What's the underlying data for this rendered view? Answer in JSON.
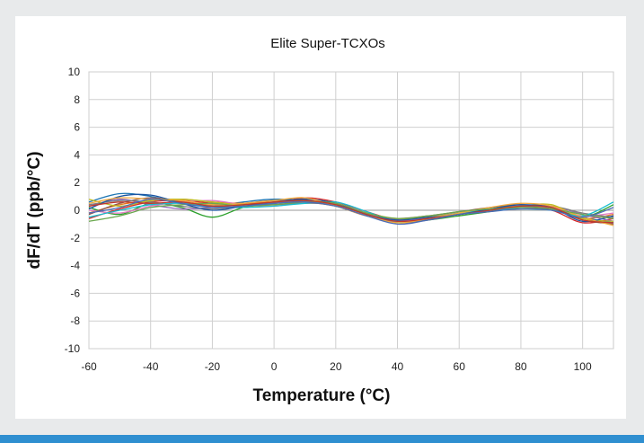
{
  "chart_data": {
    "type": "line",
    "title": "Elite Super-TCXOs",
    "xlabel": "Temperature (°C)",
    "ylabel": "dF/dT (ppb/°C)",
    "xlim": [
      -60,
      110
    ],
    "ylim": [
      -10,
      10
    ],
    "xticks": [
      -60,
      -40,
      -20,
      0,
      20,
      40,
      60,
      80,
      100
    ],
    "yticks": [
      -10,
      -8,
      -6,
      -4,
      -2,
      0,
      2,
      4,
      6,
      8,
      10
    ],
    "grid": true,
    "legend": "none",
    "x": [
      -60,
      -50,
      -40,
      -30,
      -20,
      -10,
      0,
      10,
      20,
      30,
      40,
      50,
      60,
      70,
      80,
      90,
      100,
      110
    ],
    "series": [
      {
        "color": "#1f77b4",
        "values": [
          0.6,
          1.2,
          1.0,
          0.5,
          0.3,
          0.6,
          0.8,
          0.7,
          0.3,
          -0.4,
          -0.8,
          -0.6,
          -0.3,
          0.0,
          0.3,
          0.2,
          -0.5,
          -0.9
        ]
      },
      {
        "color": "#e8731a",
        "values": [
          -0.2,
          0.4,
          0.7,
          0.8,
          0.6,
          0.5,
          0.6,
          0.8,
          0.5,
          -0.2,
          -0.7,
          -0.5,
          -0.2,
          0.1,
          0.3,
          0.1,
          -0.6,
          -0.3
        ]
      },
      {
        "color": "#2ca02c",
        "values": [
          0.2,
          -0.3,
          0.5,
          0.2,
          -0.5,
          0.2,
          0.5,
          0.6,
          0.4,
          -0.3,
          -0.9,
          -0.7,
          -0.4,
          -0.1,
          0.2,
          0.2,
          -0.5,
          0.4
        ]
      },
      {
        "color": "#d62728",
        "values": [
          -0.6,
          0.1,
          0.6,
          0.7,
          0.5,
          0.3,
          0.5,
          0.9,
          0.6,
          -0.1,
          -0.7,
          -0.6,
          -0.3,
          0.0,
          0.2,
          0.0,
          -0.9,
          -0.6
        ]
      },
      {
        "color": "#9467bd",
        "values": [
          0.3,
          0.8,
          0.4,
          0.1,
          0.2,
          0.4,
          0.5,
          0.7,
          0.4,
          -0.3,
          -0.8,
          -0.5,
          -0.2,
          0.0,
          0.3,
          0.3,
          -0.3,
          -0.8
        ]
      },
      {
        "color": "#8c564b",
        "values": [
          -0.3,
          0.5,
          0.9,
          0.6,
          0.4,
          0.5,
          0.7,
          0.6,
          0.3,
          -0.4,
          -0.6,
          -0.4,
          -0.1,
          0.2,
          0.4,
          0.1,
          -0.7,
          -1.0
        ]
      },
      {
        "color": "#e377c2",
        "values": [
          0.0,
          -0.2,
          0.3,
          0.6,
          0.7,
          0.4,
          0.3,
          0.6,
          0.5,
          -0.2,
          -0.7,
          -0.5,
          -0.3,
          0.1,
          0.3,
          0.2,
          -0.4,
          -0.2
        ]
      },
      {
        "color": "#7f7f7f",
        "values": [
          0.4,
          0.7,
          0.6,
          0.3,
          0.1,
          0.3,
          0.4,
          0.5,
          0.4,
          -0.3,
          -0.9,
          -0.7,
          -0.3,
          0.0,
          0.2,
          0.3,
          -0.2,
          -0.5
        ]
      },
      {
        "color": "#bcbd22",
        "values": [
          0.8,
          0.3,
          0.7,
          0.8,
          0.6,
          0.4,
          0.6,
          0.7,
          0.4,
          -0.2,
          -0.6,
          -0.5,
          -0.2,
          0.1,
          0.3,
          0.4,
          -0.6,
          -0.8
        ]
      },
      {
        "color": "#17becf",
        "values": [
          -0.5,
          0.0,
          0.4,
          0.5,
          0.3,
          0.2,
          0.3,
          0.5,
          0.6,
          -0.1,
          -0.8,
          -0.6,
          -0.2,
          0.0,
          0.1,
          0.0,
          -0.4,
          0.6
        ]
      },
      {
        "color": "#1a55a3",
        "values": [
          0.1,
          1.0,
          1.1,
          0.5,
          0.0,
          0.3,
          0.6,
          0.8,
          0.5,
          -0.3,
          -0.7,
          -0.5,
          -0.3,
          0.1,
          0.4,
          0.2,
          -0.8,
          -0.4
        ]
      },
      {
        "color": "#f2a93b",
        "values": [
          0.5,
          0.9,
          0.8,
          0.7,
          0.4,
          0.5,
          0.7,
          0.9,
          0.3,
          -0.4,
          -0.9,
          -0.6,
          -0.2,
          0.2,
          0.5,
          0.3,
          -0.5,
          -1.1
        ]
      },
      {
        "color": "#6aa84f",
        "values": [
          -0.8,
          -0.4,
          0.2,
          0.4,
          0.5,
          0.3,
          0.4,
          0.6,
          0.5,
          -0.2,
          -0.6,
          -0.4,
          -0.1,
          0.1,
          0.2,
          0.1,
          -0.3,
          -0.6
        ]
      },
      {
        "color": "#c0392b",
        "values": [
          0.3,
          0.6,
          0.5,
          0.6,
          0.3,
          0.4,
          0.6,
          0.7,
          0.4,
          -0.3,
          -0.8,
          -0.6,
          -0.3,
          0.0,
          0.3,
          0.2,
          -0.7,
          -0.9
        ]
      },
      {
        "color": "#4b6cb7",
        "values": [
          -0.2,
          0.2,
          0.8,
          0.5,
          0.2,
          0.3,
          0.5,
          0.6,
          0.3,
          -0.4,
          -1.0,
          -0.7,
          -0.3,
          -0.1,
          0.1,
          0.0,
          -0.5,
          0.2
        ]
      }
    ]
  }
}
